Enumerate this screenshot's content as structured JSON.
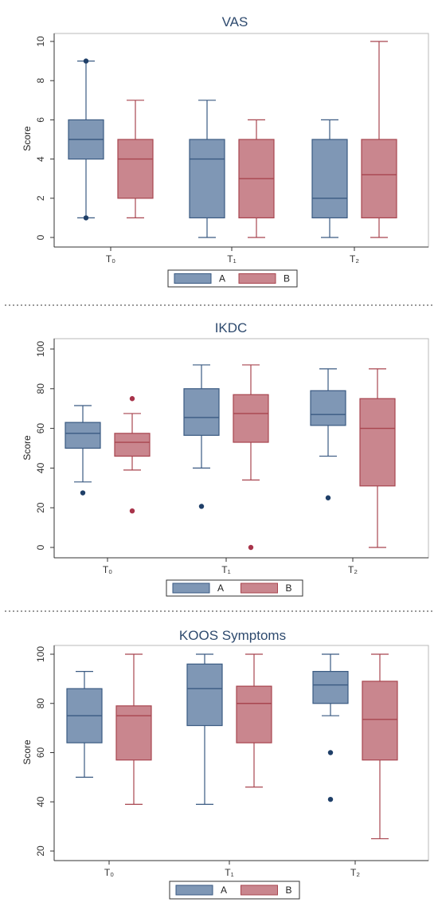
{
  "chart_data": [
    {
      "type": "box",
      "title": "VAS",
      "ylabel": "Score",
      "xlabel": "",
      "ylim": [
        0,
        10
      ],
      "yticks": [
        "0",
        "2",
        "4",
        "6",
        "8",
        "10"
      ],
      "categories": [
        "T₀",
        "T₁",
        "T₂"
      ],
      "legend": {
        "placement": "bottom-center",
        "entries": [
          "A",
          "B"
        ]
      },
      "grid": false,
      "series": [
        {
          "name": "A",
          "color": "#7f97b5",
          "boxes": [
            {
              "min": 1,
              "q1": 4,
              "median": 5,
              "q3": 6,
              "max": 9,
              "outliers": [
                9,
                1
              ]
            },
            {
              "min": 0,
              "q1": 1,
              "median": 4,
              "q3": 5,
              "max": 7,
              "outliers": []
            },
            {
              "min": 0,
              "q1": 1,
              "median": 2,
              "q3": 5,
              "max": 6,
              "outliers": []
            }
          ]
        },
        {
          "name": "B",
          "color": "#c9868e",
          "boxes": [
            {
              "min": 1,
              "q1": 2,
              "median": 4,
              "q3": 5,
              "max": 7,
              "outliers": []
            },
            {
              "min": 0,
              "q1": 1,
              "median": 3,
              "q3": 5,
              "max": 6,
              "outliers": []
            },
            {
              "min": 0,
              "q1": 1,
              "median": 3.2,
              "q3": 5,
              "max": 10,
              "outliers": []
            }
          ]
        }
      ]
    },
    {
      "type": "box",
      "title": "IKDC",
      "ylabel": "Score",
      "xlabel": "",
      "ylim": [
        0,
        100
      ],
      "yticks": [
        "0",
        "20",
        "40",
        "60",
        "80",
        "100"
      ],
      "categories": [
        "T₀",
        "T₁",
        "T₂"
      ],
      "legend": {
        "placement": "bottom-center",
        "entries": [
          "A",
          "B"
        ]
      },
      "grid": false,
      "series": [
        {
          "name": "A",
          "color": "#7f97b5",
          "boxes": [
            {
              "min": 33,
              "q1": 50,
              "median": 57.5,
              "q3": 63,
              "max": 71.5,
              "outliers": [
                27.5
              ]
            },
            {
              "min": 40,
              "q1": 56.5,
              "median": 65.5,
              "q3": 80,
              "max": 92,
              "outliers": [
                20.7
              ]
            },
            {
              "min": 46,
              "q1": 61.5,
              "median": 67,
              "q3": 79,
              "max": 90,
              "outliers": [
                25
              ]
            }
          ]
        },
        {
          "name": "B",
          "color": "#c9868e",
          "boxes": [
            {
              "min": 39,
              "q1": 46,
              "median": 53,
              "q3": 57.5,
              "max": 67.5,
              "outliers": [
                75,
                18.4
              ]
            },
            {
              "min": 34,
              "q1": 53,
              "median": 67.5,
              "q3": 77,
              "max": 92,
              "outliers": [
                0
              ]
            },
            {
              "min": 0,
              "q1": 31,
              "median": 60,
              "q3": 75,
              "max": 90,
              "outliers": []
            }
          ]
        }
      ]
    },
    {
      "type": "box",
      "title": "KOOS Symptoms",
      "ylabel": "Score",
      "xlabel": "",
      "ylim": [
        20,
        100
      ],
      "yticks": [
        "20",
        "40",
        "60",
        "80",
        "100"
      ],
      "categories": [
        "T₀",
        "T₁",
        "T₂"
      ],
      "legend": {
        "placement": "bottom-center",
        "entries": [
          "A",
          "B"
        ]
      },
      "grid": false,
      "series": [
        {
          "name": "A",
          "color": "#7f97b5",
          "boxes": [
            {
              "min": 50,
              "q1": 64,
              "median": 75,
              "q3": 86,
              "max": 93,
              "outliers": []
            },
            {
              "min": 39,
              "q1": 71,
              "median": 86,
              "q3": 96,
              "max": 100,
              "outliers": []
            },
            {
              "min": 75,
              "q1": 80,
              "median": 87.5,
              "q3": 93,
              "max": 100,
              "outliers": [
                60,
                41
              ]
            }
          ]
        },
        {
          "name": "B",
          "color": "#c9868e",
          "boxes": [
            {
              "min": 39,
              "q1": 57,
              "median": 75,
              "q3": 79,
              "max": 100,
              "outliers": []
            },
            {
              "min": 46,
              "q1": 64,
              "median": 80,
              "q3": 87,
              "max": 100,
              "outliers": []
            },
            {
              "min": 25,
              "q1": 57,
              "median": 73.5,
              "q3": 89,
              "max": 100,
              "outliers": []
            }
          ]
        }
      ]
    }
  ],
  "colors": {
    "A_fill": "#7f97b5",
    "A_line": "#3a5a82",
    "A_dot": "#1f3f68",
    "B_fill": "#c9868e",
    "B_line": "#a8454f",
    "B_dot": "#a8334a",
    "title": "#2e4a6e",
    "divider": "#9a9a9a"
  }
}
